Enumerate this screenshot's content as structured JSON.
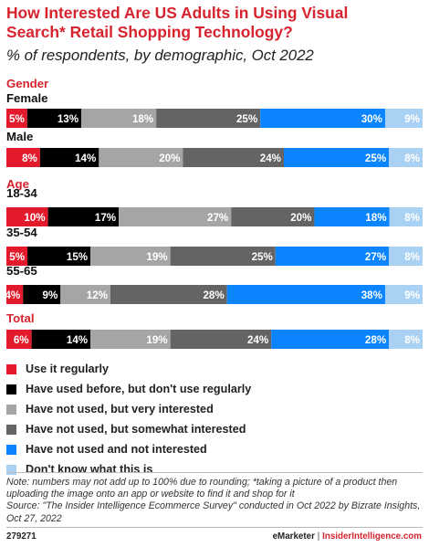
{
  "title": "How Interested Are US Adults in Using Visual Search* Retail Shopping Technology?",
  "subtitle": "% of respondents, by demographic, Oct 2022",
  "chart_data": {
    "type": "bar",
    "orientation": "horizontal",
    "stacked": true,
    "normalized": true,
    "series": [
      {
        "name": "Use it regularly",
        "color": "#e31a2b",
        "values": [
          5,
          8,
          10,
          5,
          4,
          6
        ]
      },
      {
        "name": "Have used before, but don't use regularly",
        "color": "#000000",
        "values": [
          13,
          14,
          17,
          15,
          9,
          14
        ]
      },
      {
        "name": "Have not used, but very interested",
        "color": "#a5a5a5",
        "values": [
          18,
          20,
          27,
          19,
          12,
          19
        ]
      },
      {
        "name": "Have not used, but somewhat interested",
        "color": "#646464",
        "values": [
          25,
          24,
          20,
          25,
          28,
          24
        ]
      },
      {
        "name": "Have not used and not interested",
        "color": "#0a84ff",
        "values": [
          30,
          25,
          18,
          27,
          38,
          28
        ]
      },
      {
        "name": "Don't know what this is",
        "color": "#a8d1f3",
        "values": [
          9,
          8,
          8,
          8,
          9,
          8
        ]
      }
    ],
    "groups": [
      {
        "label": "Gender",
        "rows": [
          {
            "label": "Female",
            "index": 0
          },
          {
            "label": "Male",
            "index": 1
          }
        ]
      },
      {
        "label": "Age",
        "rows": [
          {
            "label": "18-34",
            "index": 2
          },
          {
            "label": "35-54",
            "index": 3
          },
          {
            "label": "55-65",
            "index": 4
          }
        ]
      },
      {
        "label": "Total",
        "rows": [
          {
            "label": "",
            "index": 5
          }
        ]
      }
    ],
    "value_suffix": "%",
    "legend_position": "bottom",
    "grid": false
  },
  "note": "Note: numbers may not add up to 100% due to rounding; *taking a picture of a product then uploading the image onto an app or website to find it and shop for it",
  "source": "Source: \"The Insider Intelligence Ecommerce Survey\" conducted in Oct 2022 by Bizrate Insights, Oct 27, 2022",
  "chart_id": "279271",
  "brand": {
    "left": "eMarketer",
    "separator": "|",
    "right": "InsiderIntelligence.com"
  },
  "colors": {
    "accent": "#d7232e"
  }
}
